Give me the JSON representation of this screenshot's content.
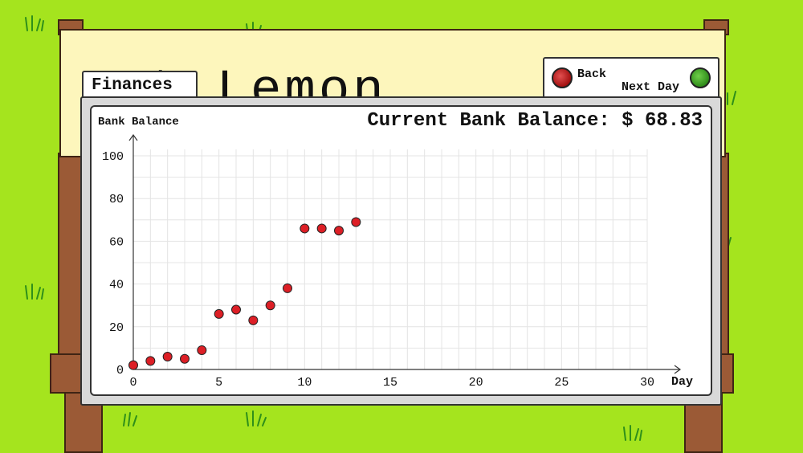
{
  "sign": {
    "title": "ast Lemon"
  },
  "tabs": {
    "finances_label": "Finances",
    "back_label": "Back",
    "next_day_label": "Next Day"
  },
  "balance": {
    "label": "Current Bank Balance:",
    "currency": "$",
    "value": "68.83"
  },
  "colors": {
    "grass": "#a5e41e",
    "wood": "#9b5a36",
    "point_fill": "#dd1f26",
    "back_button": "#c21c1c",
    "next_button": "#3fa521"
  },
  "chart_data": {
    "type": "scatter",
    "title": "",
    "ylabel": "Bank Balance",
    "xlabel": "Day",
    "xlim": [
      0,
      30
    ],
    "ylim": [
      0,
      100
    ],
    "x_ticks": [
      0,
      5,
      10,
      15,
      20,
      25,
      30
    ],
    "y_ticks": [
      0,
      20,
      40,
      60,
      80,
      100
    ],
    "grid": true,
    "x": [
      0,
      1,
      2,
      3,
      4,
      5,
      6,
      7,
      8,
      9,
      10,
      11,
      12,
      13
    ],
    "y": [
      2,
      4,
      6,
      5,
      9,
      26,
      28,
      23,
      30,
      38,
      66,
      66,
      65,
      69
    ]
  }
}
